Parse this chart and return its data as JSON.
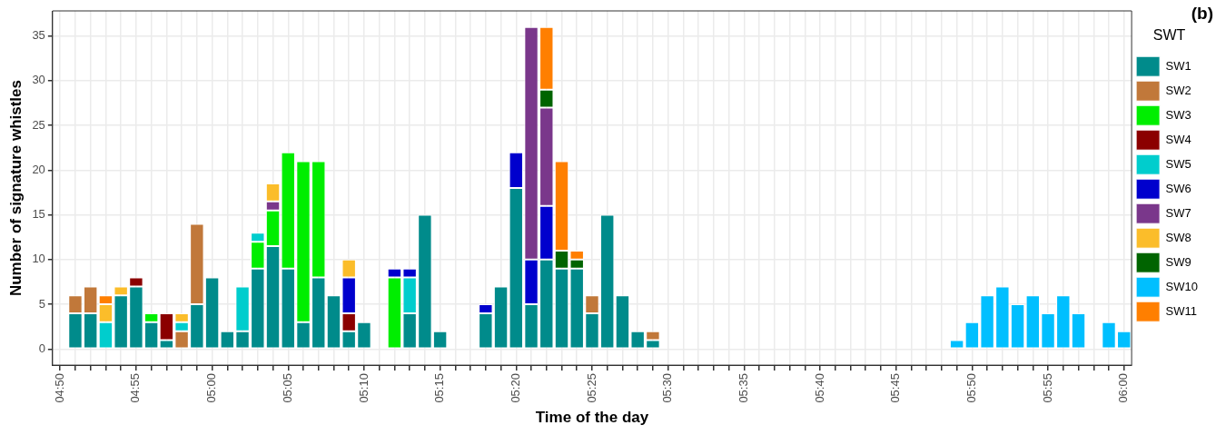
{
  "chart_data": {
    "type": "bar",
    "stacked": true,
    "title": "(b)",
    "xlabel": "Time of the day",
    "ylabel": "Number of signature whistles",
    "legend_title": "SWT",
    "legend": "right",
    "grid": true,
    "ylim": [
      -1.8,
      37.8
    ],
    "yticks": [
      0,
      5,
      10,
      15,
      20,
      25,
      30,
      35
    ],
    "categories": [
      "04:50",
      null,
      null,
      null,
      null,
      "04:55",
      null,
      null,
      null,
      null,
      "05:00",
      null,
      null,
      null,
      null,
      "05:05",
      null,
      null,
      null,
      null,
      "05:10",
      null,
      null,
      null,
      null,
      "05:15",
      null,
      null,
      null,
      null,
      "05:20",
      null,
      null,
      null,
      null,
      "05:25",
      null,
      null,
      null,
      null,
      "05:30",
      null,
      null,
      null,
      null,
      "05:35",
      null,
      null,
      null,
      null,
      "05:40",
      null,
      null,
      null,
      null,
      "05:45",
      null,
      null,
      null,
      null,
      "05:50",
      null,
      null,
      null,
      null,
      "05:55",
      null,
      null,
      null,
      null,
      "06:00"
    ],
    "series": [
      {
        "name": "SW1",
        "color": "#008b8b",
        "values": [
          null,
          4,
          4,
          null,
          6,
          7,
          3,
          1,
          null,
          5,
          8,
          2,
          2,
          9,
          11.5,
          9,
          3,
          8,
          6,
          2,
          3,
          null,
          null,
          4,
          15,
          2,
          null,
          null,
          4,
          7,
          18,
          5,
          10,
          9,
          9,
          4,
          15,
          6,
          2,
          1,
          null,
          null,
          null,
          null,
          null,
          null,
          null,
          null,
          null,
          null,
          null,
          null,
          null,
          null,
          null,
          null,
          null,
          null,
          null,
          null,
          null,
          null,
          null,
          null,
          null,
          null,
          null,
          null,
          null,
          null,
          null
        ]
      },
      {
        "name": "SW2",
        "color": "#c1783a",
        "values": [
          null,
          2,
          3,
          null,
          null,
          null,
          null,
          null,
          2,
          9,
          null,
          null,
          null,
          null,
          null,
          null,
          null,
          null,
          null,
          null,
          null,
          null,
          null,
          null,
          null,
          null,
          null,
          null,
          null,
          null,
          null,
          null,
          null,
          null,
          null,
          2,
          null,
          null,
          null,
          1,
          null,
          null,
          null,
          null,
          null,
          null,
          null,
          null,
          null,
          null,
          null,
          null,
          null,
          null,
          null,
          null,
          null,
          null,
          null,
          null,
          null,
          null,
          null,
          null,
          null,
          null,
          null,
          null,
          null,
          null,
          null
        ]
      },
      {
        "name": "SW3",
        "color": "#00ee00",
        "values": [
          null,
          null,
          null,
          null,
          null,
          null,
          1,
          null,
          null,
          null,
          null,
          null,
          null,
          3,
          4,
          13,
          18,
          13,
          null,
          null,
          null,
          null,
          8,
          null,
          null,
          null,
          null,
          null,
          null,
          null,
          null,
          null,
          null,
          null,
          null,
          null,
          null,
          null,
          null,
          null,
          null,
          null,
          null,
          null,
          null,
          null,
          null,
          null,
          null,
          null,
          null,
          null,
          null,
          null,
          null,
          null,
          null,
          null,
          null,
          null,
          null,
          null,
          null,
          null,
          null,
          null,
          null,
          null,
          null,
          null,
          null
        ]
      },
      {
        "name": "SW4",
        "color": "#8b0000",
        "values": [
          null,
          null,
          null,
          null,
          null,
          1,
          null,
          3,
          null,
          null,
          null,
          null,
          null,
          null,
          null,
          null,
          null,
          null,
          null,
          2,
          null,
          null,
          null,
          null,
          null,
          null,
          null,
          null,
          null,
          null,
          null,
          null,
          null,
          null,
          null,
          null,
          null,
          null,
          null,
          null,
          null,
          null,
          null,
          null,
          null,
          null,
          null,
          null,
          null,
          null,
          null,
          null,
          null,
          null,
          null,
          null,
          null,
          null,
          null,
          null,
          null,
          null,
          null,
          null,
          null,
          null,
          null,
          null,
          null,
          null,
          null
        ]
      },
      {
        "name": "SW5",
        "color": "#00cdcd",
        "values": [
          null,
          null,
          null,
          3,
          null,
          null,
          null,
          null,
          1,
          null,
          null,
          null,
          5,
          1,
          null,
          null,
          null,
          null,
          null,
          null,
          null,
          null,
          null,
          4,
          null,
          null,
          null,
          null,
          null,
          null,
          null,
          null,
          null,
          null,
          null,
          null,
          null,
          null,
          null,
          null,
          null,
          null,
          null,
          null,
          null,
          null,
          null,
          null,
          null,
          null,
          null,
          null,
          null,
          null,
          null,
          null,
          null,
          null,
          null,
          null,
          null,
          null,
          null,
          null,
          null,
          null,
          null,
          null,
          null,
          null,
          null
        ]
      },
      {
        "name": "SW6",
        "color": "#0000cd",
        "values": [
          null,
          null,
          null,
          null,
          null,
          null,
          null,
          null,
          null,
          null,
          null,
          null,
          null,
          null,
          null,
          null,
          null,
          null,
          null,
          4,
          null,
          null,
          1,
          1,
          null,
          null,
          null,
          null,
          1,
          null,
          4,
          5,
          6,
          null,
          null,
          null,
          null,
          null,
          null,
          null,
          null,
          null,
          null,
          null,
          null,
          null,
          null,
          null,
          null,
          null,
          null,
          null,
          null,
          null,
          null,
          null,
          null,
          null,
          null,
          null,
          null,
          null,
          null,
          null,
          null,
          null,
          null,
          null,
          null,
          null,
          null
        ]
      },
      {
        "name": "SW7",
        "color": "#7a378b",
        "values": [
          null,
          null,
          null,
          null,
          null,
          null,
          null,
          null,
          null,
          null,
          null,
          null,
          null,
          null,
          1,
          null,
          null,
          null,
          null,
          null,
          null,
          null,
          null,
          null,
          null,
          null,
          null,
          null,
          null,
          null,
          null,
          26,
          11,
          null,
          null,
          null,
          null,
          null,
          null,
          null,
          null,
          null,
          null,
          null,
          null,
          null,
          null,
          null,
          null,
          null,
          null,
          null,
          null,
          null,
          null,
          null,
          null,
          null,
          null,
          null,
          null,
          null,
          null,
          null,
          null,
          null,
          null,
          null,
          null,
          null,
          null
        ]
      },
      {
        "name": "SW8",
        "color": "#fbbd2a",
        "values": [
          null,
          null,
          null,
          2,
          1,
          null,
          null,
          null,
          1,
          null,
          null,
          null,
          null,
          null,
          2,
          null,
          null,
          null,
          null,
          2,
          null,
          null,
          null,
          null,
          null,
          null,
          null,
          null,
          null,
          null,
          null,
          null,
          null,
          null,
          null,
          null,
          null,
          null,
          null,
          null,
          null,
          null,
          null,
          null,
          null,
          null,
          null,
          null,
          null,
          null,
          null,
          null,
          null,
          null,
          null,
          null,
          null,
          null,
          null,
          null,
          null,
          null,
          null,
          null,
          null,
          null,
          null,
          null,
          null,
          null,
          null
        ]
      },
      {
        "name": "SW9",
        "color": "#006400",
        "values": [
          null,
          null,
          null,
          null,
          null,
          null,
          null,
          null,
          null,
          null,
          null,
          null,
          null,
          null,
          null,
          null,
          null,
          null,
          null,
          null,
          null,
          null,
          null,
          null,
          null,
          null,
          null,
          null,
          null,
          null,
          null,
          null,
          2,
          2,
          1,
          null,
          null,
          null,
          null,
          null,
          null,
          null,
          null,
          null,
          null,
          null,
          null,
          null,
          null,
          null,
          null,
          null,
          null,
          null,
          null,
          null,
          null,
          null,
          null,
          null,
          null,
          null,
          null,
          null,
          null,
          null,
          null,
          null,
          null,
          null,
          null
        ]
      },
      {
        "name": "SW10",
        "color": "#00bfff",
        "values": [
          null,
          null,
          null,
          null,
          null,
          null,
          null,
          null,
          null,
          null,
          null,
          null,
          null,
          null,
          null,
          null,
          null,
          null,
          null,
          null,
          null,
          null,
          null,
          null,
          null,
          null,
          null,
          null,
          null,
          null,
          null,
          null,
          null,
          null,
          null,
          null,
          null,
          null,
          null,
          null,
          null,
          null,
          null,
          null,
          null,
          null,
          null,
          null,
          null,
          null,
          null,
          null,
          null,
          null,
          null,
          null,
          null,
          null,
          null,
          1,
          3,
          6,
          7,
          5,
          6,
          4,
          6,
          4,
          null,
          3,
          2
        ]
      },
      {
        "name": "SW11",
        "color": "#ff7f00",
        "values": [
          null,
          null,
          null,
          1,
          null,
          null,
          null,
          null,
          null,
          null,
          null,
          null,
          null,
          null,
          null,
          null,
          null,
          null,
          null,
          null,
          null,
          null,
          null,
          null,
          null,
          null,
          null,
          null,
          null,
          null,
          null,
          null,
          7,
          10,
          1,
          null,
          null,
          null,
          null,
          null,
          null,
          null,
          null,
          null,
          null,
          null,
          null,
          null,
          null,
          null,
          null,
          null,
          null,
          null,
          null,
          null,
          null,
          null,
          null,
          null,
          null,
          null,
          null,
          null,
          null,
          null,
          null,
          null,
          null,
          null,
          null
        ]
      }
    ]
  }
}
